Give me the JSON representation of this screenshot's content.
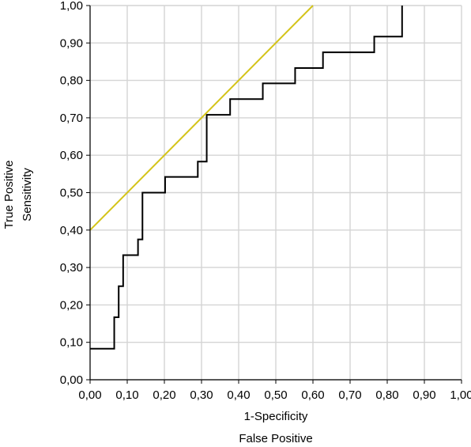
{
  "chart_data": {
    "type": "line",
    "title": "",
    "xlabel": [
      "1-Specificity",
      "False Positive"
    ],
    "ylabel": [
      "True Positive",
      "Sensitivity"
    ],
    "xlim": [
      0,
      1
    ],
    "ylim": [
      0,
      1
    ],
    "grid": true,
    "x_ticks": [
      "0,00",
      "0,10",
      "0,20",
      "0,30",
      "0,40",
      "0,50",
      "0,60",
      "0,70",
      "0,80",
      "0,90",
      "1,00"
    ],
    "y_ticks": [
      "0,00",
      "0,10",
      "0,20",
      "0,30",
      "0,40",
      "0,50",
      "0,60",
      "0,70",
      "0,80",
      "0,90",
      "1,00"
    ],
    "series": [
      {
        "color": "#000000",
        "style": "step",
        "points": [
          [
            0.0,
            0.083
          ],
          [
            0.065,
            0.083
          ],
          [
            0.065,
            0.167
          ],
          [
            0.077,
            0.167
          ],
          [
            0.077,
            0.25
          ],
          [
            0.089,
            0.25
          ],
          [
            0.089,
            0.333
          ],
          [
            0.129,
            0.333
          ],
          [
            0.129,
            0.375
          ],
          [
            0.141,
            0.375
          ],
          [
            0.141,
            0.5
          ],
          [
            0.202,
            0.5
          ],
          [
            0.202,
            0.542
          ],
          [
            0.29,
            0.542
          ],
          [
            0.29,
            0.583
          ],
          [
            0.314,
            0.583
          ],
          [
            0.314,
            0.708
          ],
          [
            0.377,
            0.708
          ],
          [
            0.377,
            0.75
          ],
          [
            0.465,
            0.75
          ],
          [
            0.465,
            0.792
          ],
          [
            0.552,
            0.792
          ],
          [
            0.552,
            0.833
          ],
          [
            0.627,
            0.833
          ],
          [
            0.627,
            0.875
          ],
          [
            0.765,
            0.875
          ],
          [
            0.765,
            0.917
          ],
          [
            0.84,
            0.917
          ],
          [
            0.84,
            1.0
          ]
        ]
      },
      {
        "color": "#d4c41a",
        "style": "line",
        "points": [
          [
            0.0,
            0.4
          ],
          [
            0.6,
            1.0
          ]
        ]
      }
    ]
  }
}
